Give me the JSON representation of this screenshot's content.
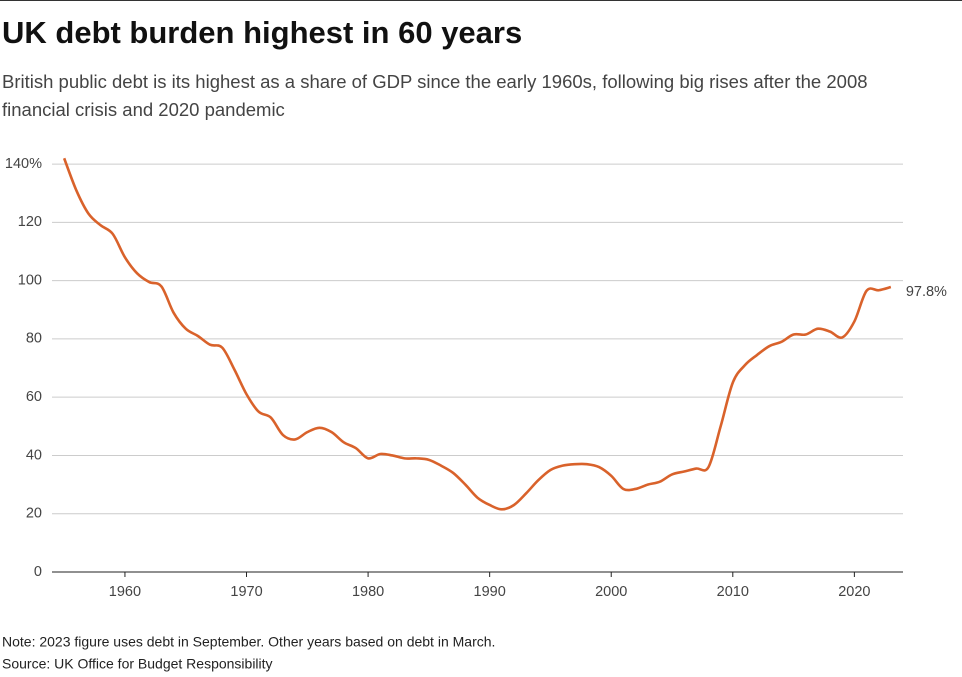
{
  "chart_data": {
    "type": "line",
    "title": "UK debt burden highest in 60 years",
    "subtitle_lines": [
      "British public debt is its highest as a share of GDP since the early 1960s, following big rises after the 2008",
      "financial crisis and 2020 pandemic"
    ],
    "notes": [
      "Note: 2023 figure uses debt in September. Other years based on debt in March.",
      "Source: UK Office for Budget Responsibility"
    ],
    "x": [
      1955,
      1956,
      1957,
      1958,
      1959,
      1960,
      1961,
      1962,
      1963,
      1964,
      1965,
      1966,
      1967,
      1968,
      1969,
      1970,
      1971,
      1972,
      1973,
      1974,
      1975,
      1976,
      1977,
      1978,
      1979,
      1980,
      1981,
      1982,
      1983,
      1984,
      1985,
      1986,
      1987,
      1988,
      1989,
      1990,
      1991,
      1992,
      1993,
      1994,
      1995,
      1996,
      1997,
      1998,
      1999,
      2000,
      2001,
      2002,
      2003,
      2004,
      2005,
      2006,
      2007,
      2008,
      2009,
      2010,
      2011,
      2012,
      2013,
      2014,
      2015,
      2016,
      2017,
      2018,
      2019,
      2020,
      2021,
      2022,
      2023
    ],
    "values": [
      142,
      131,
      123,
      119,
      116,
      108,
      102.5,
      99.5,
      98,
      89,
      83.5,
      81,
      78,
      77,
      69.5,
      61,
      55,
      53,
      47,
      45.5,
      48,
      49.5,
      48,
      44.5,
      42.5,
      39,
      40.5,
      40,
      39,
      39,
      38.5,
      36.5,
      34,
      30,
      25.5,
      23,
      21.5,
      23,
      27,
      31.5,
      35,
      36.5,
      37,
      37,
      36,
      33,
      28.5,
      28.5,
      30,
      31,
      33.5,
      34.5,
      35.5,
      36,
      50,
      65,
      71,
      74.5,
      77.5,
      79,
      81.5,
      81.5,
      83.5,
      82.5,
      80.5,
      86,
      96.5,
      96.7,
      97.8
    ],
    "value_labels": [
      null,
      null,
      null,
      null,
      null,
      null,
      null,
      null,
      null,
      null,
      null,
      null,
      null,
      null,
      null,
      null,
      null,
      null,
      null,
      null,
      null,
      null,
      null,
      null,
      null,
      null,
      null,
      null,
      null,
      null,
      null,
      null,
      null,
      null,
      null,
      null,
      null,
      null,
      null,
      null,
      null,
      null,
      null,
      null,
      null,
      null,
      null,
      null,
      null,
      null,
      null,
      null,
      null,
      null,
      null,
      null,
      null,
      null,
      null,
      null,
      null,
      null,
      null,
      null,
      null,
      null,
      null,
      null,
      "97.8%"
    ],
    "color": "#d9622b",
    "xlim": [
      1954,
      2024
    ],
    "xticks": [
      1960,
      1970,
      1980,
      1990,
      2000,
      2010,
      2020
    ],
    "ylim": [
      0,
      145
    ],
    "yticks": [
      0,
      20,
      40,
      60,
      80,
      100,
      120,
      {
        "value": 140,
        "label": "140%"
      }
    ],
    "grid": true
  }
}
